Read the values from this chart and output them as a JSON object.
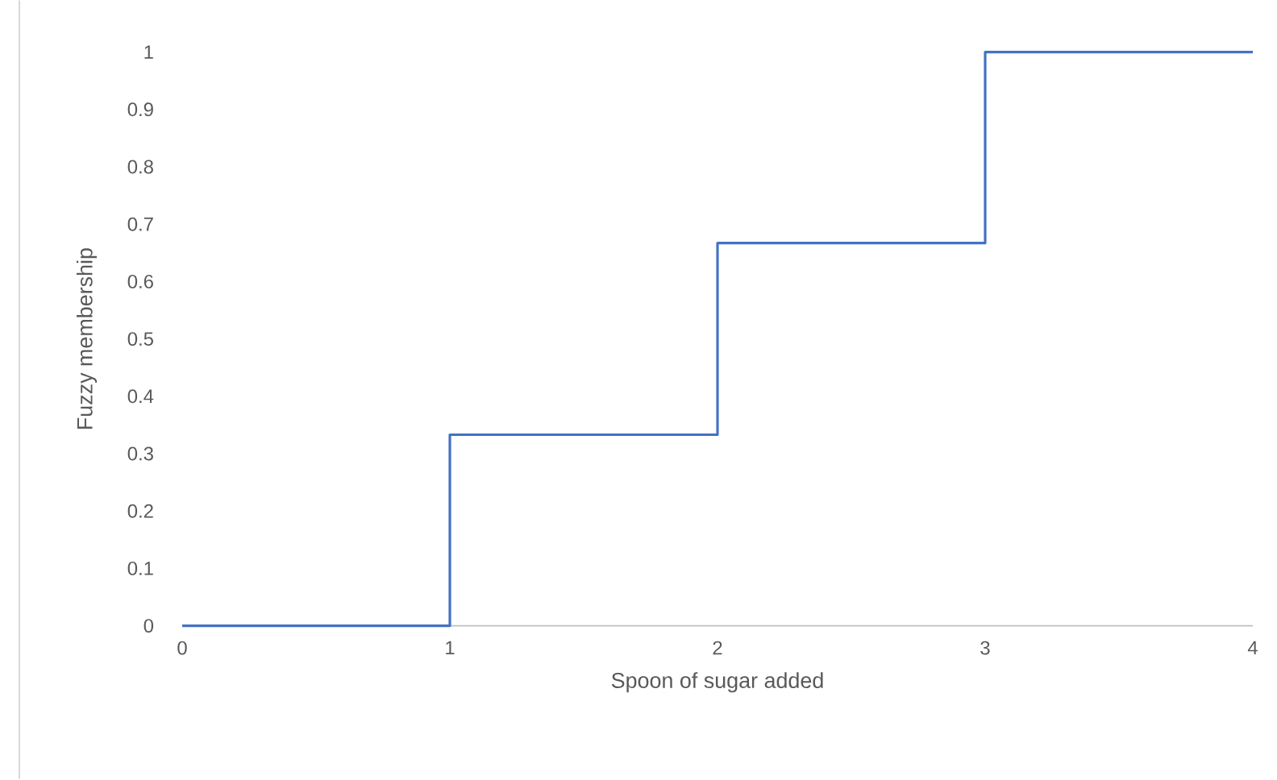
{
  "chart_data": {
    "type": "step",
    "xlabel": "Spoon of sugar added",
    "ylabel": "Fuzzy membership",
    "x": [
      0,
      1,
      2,
      3,
      4
    ],
    "series": [
      {
        "color": "#4472c4",
        "values": [
          0,
          0.333,
          0.667,
          1,
          1
        ]
      }
    ],
    "xlim": [
      0,
      4
    ],
    "xticks": [
      0,
      1,
      2,
      3,
      4
    ],
    "ylim": [
      0,
      1
    ],
    "yticks": [
      0,
      0.1,
      0.2,
      0.3,
      0.4,
      0.5,
      0.6,
      0.7,
      0.8,
      0.9,
      1
    ]
  }
}
